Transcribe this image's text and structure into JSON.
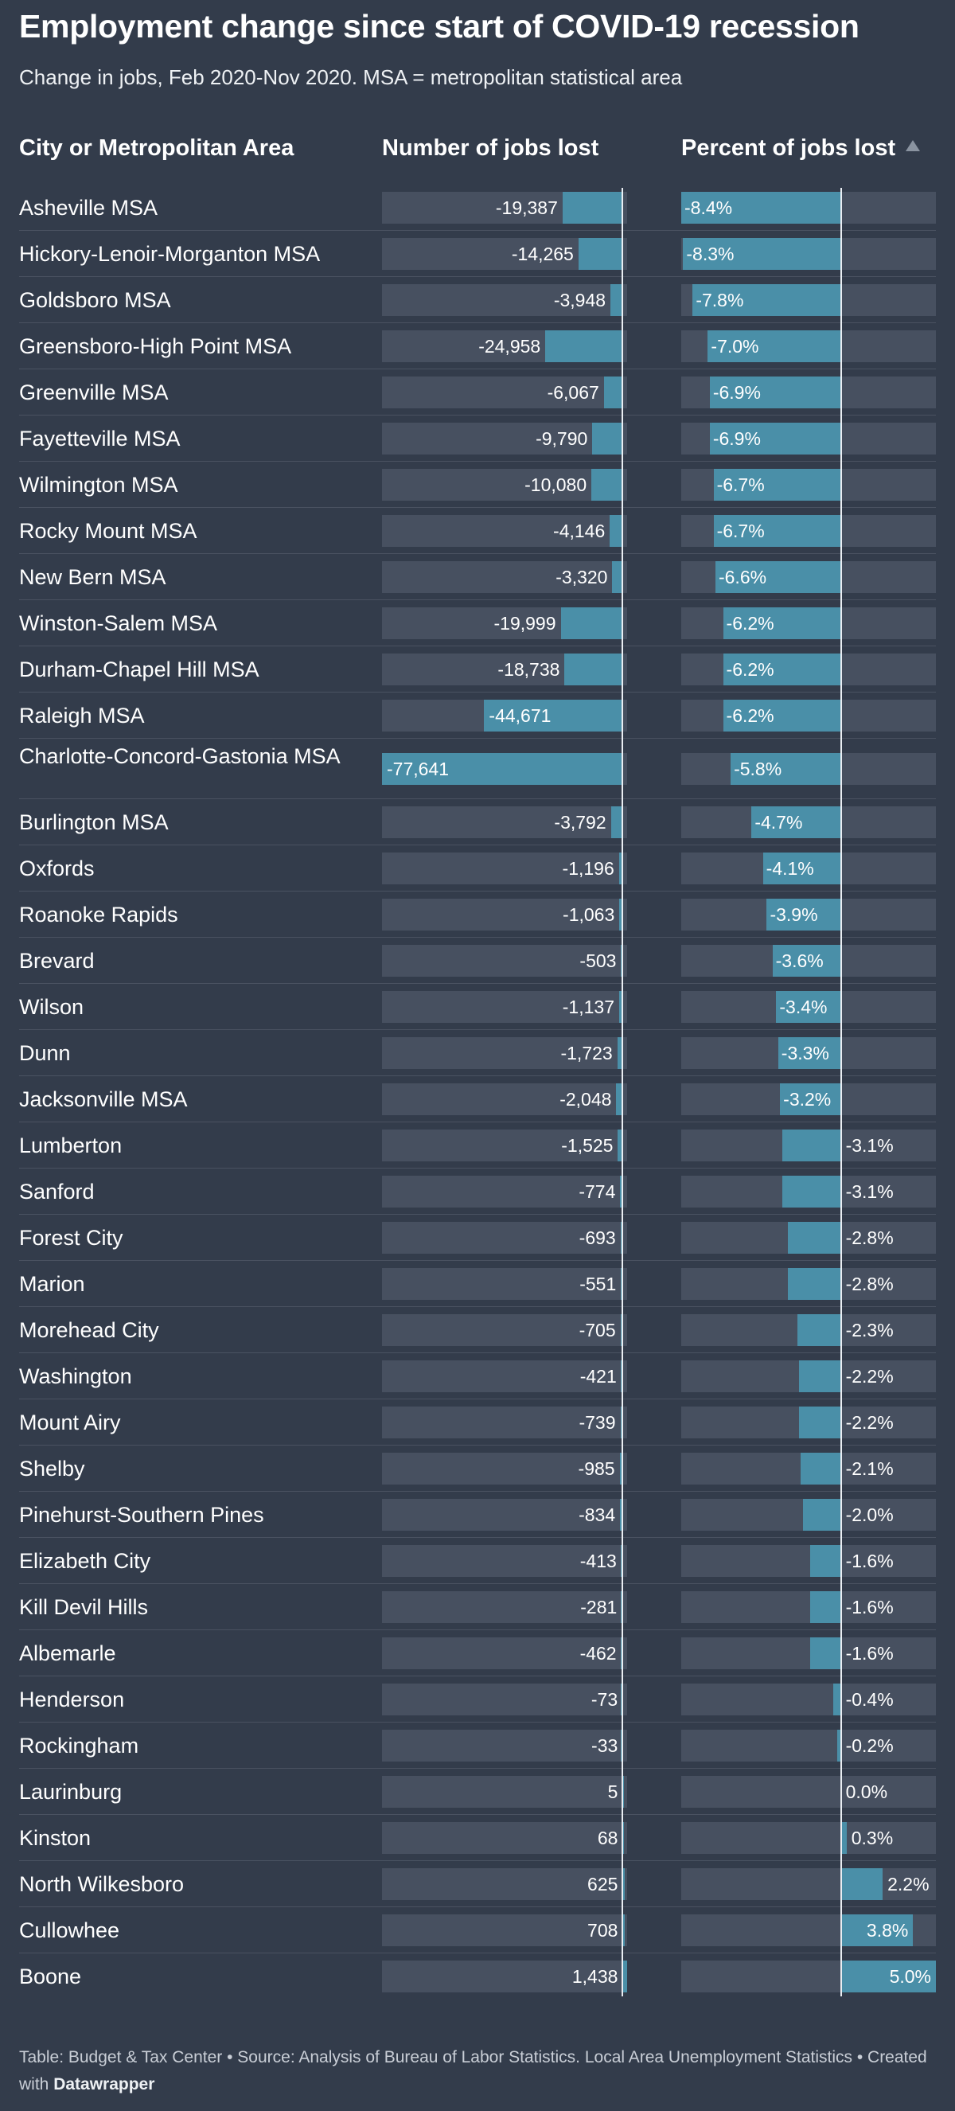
{
  "title": "Employment change since start of COVID-19 recession",
  "subtitle": "Change in jobs, Feb 2020-Nov 2020. MSA = metropolitan statistical area",
  "columns": {
    "city": "City or Metropolitan Area",
    "jobs": "Number of jobs lost",
    "pct": "Percent of jobs lost"
  },
  "footer": {
    "text": "Table: Budget & Tax Center • Source: Analysis of Bureau of Labor Statistics. Local Area Unemployment Statistics • Created with",
    "brand": "Datawrapper"
  },
  "colors": {
    "background": "#333c4b",
    "bar": "#4a8fa8",
    "track": "#475060",
    "axis": "#e9edf2"
  },
  "chart_data": {
    "type": "table",
    "sorted_by": "Percent of jobs lost",
    "jobs_range": [
      -77641,
      1438
    ],
    "pct_range": [
      -8.4,
      5.0
    ],
    "rows": [
      {
        "city": "Asheville MSA",
        "jobs": -19387,
        "jobs_label": "-19,387",
        "pct": -8.4,
        "pct_label": "-8.4%"
      },
      {
        "city": "Hickory-Lenoir-Morganton MSA",
        "jobs": -14265,
        "jobs_label": "-14,265",
        "pct": -8.3,
        "pct_label": "-8.3%"
      },
      {
        "city": "Goldsboro MSA",
        "jobs": -3948,
        "jobs_label": "-3,948",
        "pct": -7.8,
        "pct_label": "-7.8%"
      },
      {
        "city": "Greensboro-High Point MSA",
        "jobs": -24958,
        "jobs_label": "-24,958",
        "pct": -7.0,
        "pct_label": "-7.0%"
      },
      {
        "city": "Greenville MSA",
        "jobs": -6067,
        "jobs_label": "-6,067",
        "pct": -6.9,
        "pct_label": "-6.9%"
      },
      {
        "city": "Fayetteville MSA",
        "jobs": -9790,
        "jobs_label": "-9,790",
        "pct": -6.9,
        "pct_label": "-6.9%"
      },
      {
        "city": "Wilmington MSA",
        "jobs": -10080,
        "jobs_label": "-10,080",
        "pct": -6.7,
        "pct_label": "-6.7%"
      },
      {
        "city": "Rocky Mount MSA",
        "jobs": -4146,
        "jobs_label": "-4,146",
        "pct": -6.7,
        "pct_label": "-6.7%"
      },
      {
        "city": "New Bern MSA",
        "jobs": -3320,
        "jobs_label": "-3,320",
        "pct": -6.6,
        "pct_label": "-6.6%"
      },
      {
        "city": "Winston-Salem MSA",
        "jobs": -19999,
        "jobs_label": "-19,999",
        "pct": -6.2,
        "pct_label": "-6.2%"
      },
      {
        "city": "Durham-Chapel Hill MSA",
        "jobs": -18738,
        "jobs_label": "-18,738",
        "pct": -6.2,
        "pct_label": "-6.2%"
      },
      {
        "city": "Raleigh MSA",
        "jobs": -44671,
        "jobs_label": "-44,671",
        "pct": -6.2,
        "pct_label": "-6.2%"
      },
      {
        "city": "Charlotte-Concord-Gastonia MSA",
        "jobs": -77641,
        "jobs_label": "-77,641",
        "pct": -5.8,
        "pct_label": "-5.8%"
      },
      {
        "city": "Burlington MSA",
        "jobs": -3792,
        "jobs_label": "-3,792",
        "pct": -4.7,
        "pct_label": "-4.7%"
      },
      {
        "city": "Oxfords",
        "jobs": -1196,
        "jobs_label": "-1,196",
        "pct": -4.1,
        "pct_label": "-4.1%"
      },
      {
        "city": "Roanoke Rapids",
        "jobs": -1063,
        "jobs_label": "-1,063",
        "pct": -3.9,
        "pct_label": "-3.9%"
      },
      {
        "city": "Brevard",
        "jobs": -503,
        "jobs_label": "-503",
        "pct": -3.6,
        "pct_label": "-3.6%"
      },
      {
        "city": "Wilson",
        "jobs": -1137,
        "jobs_label": "-1,137",
        "pct": -3.4,
        "pct_label": "-3.4%"
      },
      {
        "city": "Dunn",
        "jobs": -1723,
        "jobs_label": "-1,723",
        "pct": -3.3,
        "pct_label": "-3.3%"
      },
      {
        "city": "Jacksonville MSA",
        "jobs": -2048,
        "jobs_label": "-2,048",
        "pct": -3.2,
        "pct_label": "-3.2%"
      },
      {
        "city": "Lumberton",
        "jobs": -1525,
        "jobs_label": "-1,525",
        "pct": -3.1,
        "pct_label": "-3.1%"
      },
      {
        "city": "Sanford",
        "jobs": -774,
        "jobs_label": "-774",
        "pct": -3.1,
        "pct_label": "-3.1%"
      },
      {
        "city": "Forest City",
        "jobs": -693,
        "jobs_label": "-693",
        "pct": -2.8,
        "pct_label": "-2.8%"
      },
      {
        "city": "Marion",
        "jobs": -551,
        "jobs_label": "-551",
        "pct": -2.8,
        "pct_label": "-2.8%"
      },
      {
        "city": "Morehead City",
        "jobs": -705,
        "jobs_label": "-705",
        "pct": -2.3,
        "pct_label": "-2.3%"
      },
      {
        "city": "Washington",
        "jobs": -421,
        "jobs_label": "-421",
        "pct": -2.2,
        "pct_label": "-2.2%"
      },
      {
        "city": "Mount Airy",
        "jobs": -739,
        "jobs_label": "-739",
        "pct": -2.2,
        "pct_label": "-2.2%"
      },
      {
        "city": "Shelby",
        "jobs": -985,
        "jobs_label": "-985",
        "pct": -2.1,
        "pct_label": "-2.1%"
      },
      {
        "city": "Pinehurst-Southern Pines",
        "jobs": -834,
        "jobs_label": "-834",
        "pct": -2.0,
        "pct_label": "-2.0%"
      },
      {
        "city": "Elizabeth City",
        "jobs": -413,
        "jobs_label": "-413",
        "pct": -1.6,
        "pct_label": "-1.6%"
      },
      {
        "city": "Kill Devil Hills",
        "jobs": -281,
        "jobs_label": "-281",
        "pct": -1.6,
        "pct_label": "-1.6%"
      },
      {
        "city": "Albemarle",
        "jobs": -462,
        "jobs_label": "-462",
        "pct": -1.6,
        "pct_label": "-1.6%"
      },
      {
        "city": "Henderson",
        "jobs": -73,
        "jobs_label": "-73",
        "pct": -0.4,
        "pct_label": "-0.4%"
      },
      {
        "city": "Rockingham",
        "jobs": -33,
        "jobs_label": "-33",
        "pct": -0.2,
        "pct_label": "-0.2%"
      },
      {
        "city": "Laurinburg",
        "jobs": 5,
        "jobs_label": "5",
        "pct": 0.0,
        "pct_label": "0.0%"
      },
      {
        "city": "Kinston",
        "jobs": 68,
        "jobs_label": "68",
        "pct": 0.3,
        "pct_label": "0.3%"
      },
      {
        "city": "North Wilkesboro",
        "jobs": 625,
        "jobs_label": "625",
        "pct": 2.2,
        "pct_label": "2.2%"
      },
      {
        "city": "Cullowhee",
        "jobs": 708,
        "jobs_label": "708",
        "pct": 3.8,
        "pct_label": "3.8%"
      },
      {
        "city": "Boone",
        "jobs": 1438,
        "jobs_label": "1,438",
        "pct": 5.0,
        "pct_label": "5.0%"
      }
    ]
  }
}
